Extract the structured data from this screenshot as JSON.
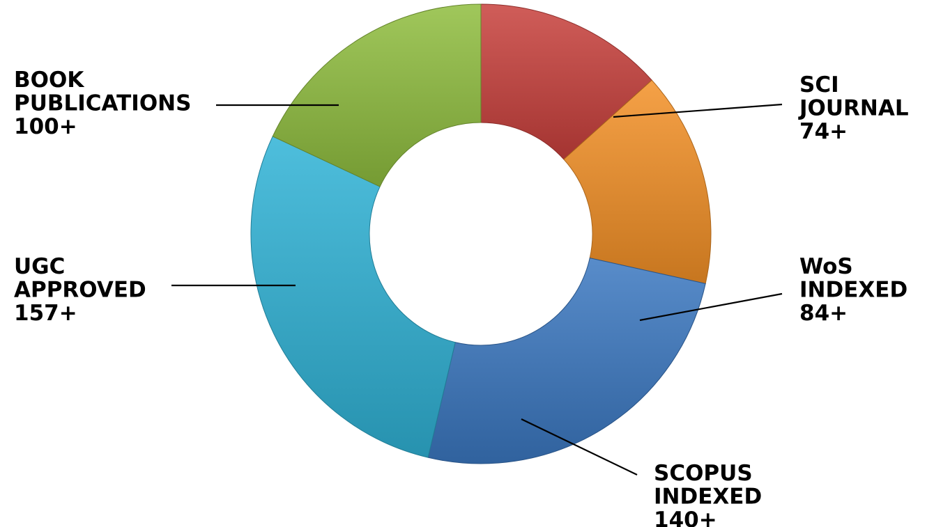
{
  "chart_data": {
    "type": "pie",
    "donut": true,
    "title": "",
    "legend": "none",
    "categories": [
      "SCI JOURNAL",
      "WoS INDEXED",
      "SCOPUS INDEXED",
      "UGC APPROVED",
      "BOOK PUBLICATIONS"
    ],
    "values": [
      74,
      84,
      140,
      157,
      100
    ],
    "slices": [
      {
        "lines": [
          "SCI",
          "JOURNAL"
        ],
        "value": 74,
        "value_label": "74+",
        "color": "#c8403c"
      },
      {
        "lines": [
          "WoS",
          "INDEXED"
        ],
        "value": 84,
        "value_label": "84+",
        "color": "#f39026"
      },
      {
        "lines": [
          "SCOPUS",
          "INDEXED"
        ],
        "value": 140,
        "value_label": "140+",
        "color": "#3a78c1"
      },
      {
        "lines": [
          "UGC",
          "APPROVED"
        ],
        "value": 157,
        "value_label": "157+",
        "color": "#2fb2d6"
      },
      {
        "lines": [
          "BOOK",
          "PUBLICATIONS"
        ],
        "value": 100,
        "value_label": "100+",
        "color": "#8fbd3e"
      }
    ]
  }
}
